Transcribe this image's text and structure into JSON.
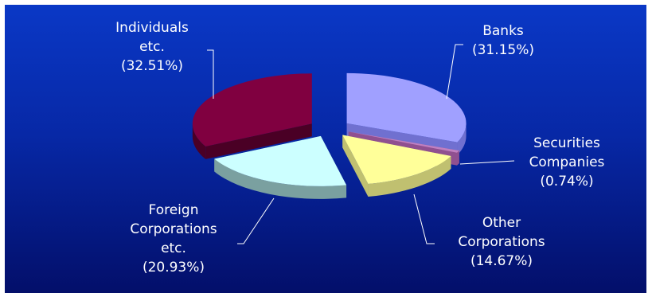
{
  "chart_data": {
    "type": "pie",
    "title": "",
    "slices": [
      {
        "id": "banks",
        "label_lines": [
          "Banks",
          "(31.15%)"
        ],
        "value": 31.15,
        "color": "#a0a0ff",
        "side": "#7070d0"
      },
      {
        "id": "securities-companies",
        "label_lines": [
          "Securities",
          "Companies",
          "(0.74%)"
        ],
        "value": 0.74,
        "color": "#c080c0",
        "side": "#905090"
      },
      {
        "id": "other-corporations",
        "label_lines": [
          "Other",
          "Corporations",
          "(14.67%)"
        ],
        "value": 14.67,
        "color": "#ffff99",
        "side": "#c0c070"
      },
      {
        "id": "foreign-corporations",
        "label_lines": [
          "Foreign",
          "Corporations",
          "etc.",
          "(20.93%)"
        ],
        "value": 20.93,
        "color": "#ccffff",
        "side": "#7aa0a0"
      },
      {
        "id": "individuals",
        "label_lines": [
          "Individuals",
          "etc.",
          "(32.51%)"
        ],
        "value": 32.51,
        "color": "#800040",
        "side": "#4a0025"
      }
    ]
  }
}
